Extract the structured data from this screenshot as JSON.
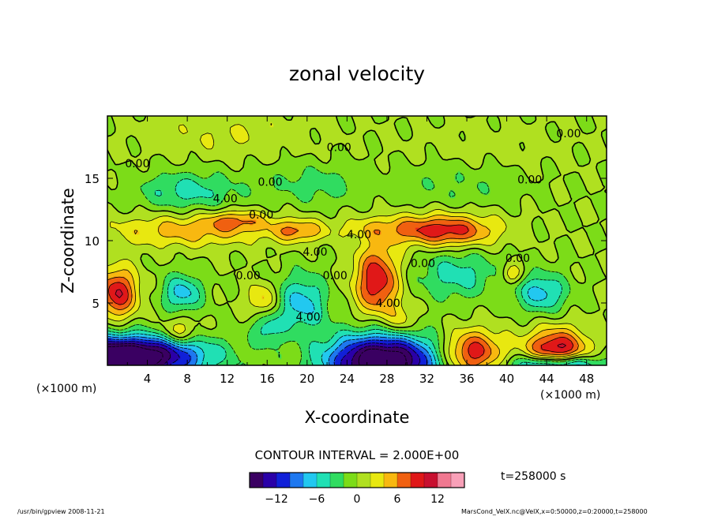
{
  "chart_data": {
    "type": "heatmap",
    "title": "zonal velocity",
    "xlabel": "X-coordinate",
    "ylabel": "Z-coordinate",
    "x_unit": "(×1000 m)",
    "y_unit": "(×1000 m)",
    "xlim": [
      0,
      50
    ],
    "ylim": [
      0,
      20
    ],
    "x_ticks": [
      "4",
      "8",
      "12",
      "16",
      "20",
      "24",
      "28",
      "32",
      "36",
      "40",
      "44",
      "48"
    ],
    "x_tick_values": [
      4,
      8,
      12,
      16,
      20,
      24,
      28,
      32,
      36,
      40,
      44,
      48
    ],
    "y_ticks": [
      "5",
      "10",
      "15"
    ],
    "y_tick_values": [
      5,
      10,
      15
    ],
    "contour_interval_text": "CONTOUR INTERVAL = 2.000E+00",
    "contour_labels": [
      {
        "text": "0.00",
        "x": 23.2,
        "z": 17.5
      },
      {
        "text": "0.00",
        "x": 46.2,
        "z": 18.6
      },
      {
        "text": "0.00",
        "x": 3.0,
        "z": 16.2
      },
      {
        "text": "0.00",
        "x": 16.3,
        "z": 14.7
      },
      {
        "text": "0.00",
        "x": 42.3,
        "z": 14.9
      },
      {
        "text": "4.00",
        "x": 11.8,
        "z": 13.4
      },
      {
        "text": "0.00",
        "x": 15.4,
        "z": 12.1
      },
      {
        "text": "4.00",
        "x": 25.2,
        "z": 10.5
      },
      {
        "text": "4.00",
        "x": 20.8,
        "z": 9.1
      },
      {
        "text": "0.00",
        "x": 14.1,
        "z": 7.2
      },
      {
        "text": "0.00",
        "x": 22.8,
        "z": 7.2
      },
      {
        "text": "0.00",
        "x": 31.6,
        "z": 8.2
      },
      {
        "text": "0.00",
        "x": 41.1,
        "z": 8.6
      },
      {
        "text": "4.00",
        "x": 20.1,
        "z": 3.9
      },
      {
        "text": "4.00",
        "x": 28.1,
        "z": 5.0
      }
    ],
    "fields": [
      {
        "x": 0.5,
        "z": 0.2,
        "sx": 8.0,
        "sz": 2.0,
        "amp": -18
      },
      {
        "x": 27.5,
        "z": 0.3,
        "sx": 5.5,
        "sz": 2.2,
        "amp": -20
      },
      {
        "x": 4.0,
        "z": 1.2,
        "sx": 6.5,
        "sz": 1.2,
        "amp": -6
      },
      {
        "x": 36.5,
        "z": 1.0,
        "sx": 3.0,
        "sz": 1.8,
        "amp": 10
      },
      {
        "x": 45.0,
        "z": 0.8,
        "sx": 3.0,
        "sz": 2.0,
        "amp": 13
      },
      {
        "x": 45.0,
        "z": 0.0,
        "sx": 4.0,
        "sz": 0.9,
        "amp": -16
      },
      {
        "x": 1.0,
        "z": 5.8,
        "sx": 2.0,
        "sz": 2.0,
        "amp": 10
      },
      {
        "x": 7.5,
        "z": 5.8,
        "sx": 2.0,
        "sz": 1.5,
        "amp": -7
      },
      {
        "x": 7.2,
        "z": 2.6,
        "sx": 1.8,
        "sz": 1.2,
        "amp": 5
      },
      {
        "x": 15.5,
        "z": 5.2,
        "sx": 1.5,
        "sz": 1.4,
        "amp": 5
      },
      {
        "x": 19.5,
        "z": 5.0,
        "sx": 2.5,
        "sz": 2.3,
        "amp": -7
      },
      {
        "x": 16.0,
        "z": 3.0,
        "sx": 1.6,
        "sz": 1.4,
        "amp": -5
      },
      {
        "x": 27.0,
        "z": 6.8,
        "sx": 2.2,
        "sz": 2.8,
        "amp": 10
      },
      {
        "x": 29.5,
        "z": 3.5,
        "sx": 1.5,
        "sz": 1.2,
        "amp": 4
      },
      {
        "x": 35.0,
        "z": 7.3,
        "sx": 4.0,
        "sz": 2.0,
        "amp": -5
      },
      {
        "x": 43.5,
        "z": 5.8,
        "sx": 2.5,
        "sz": 1.6,
        "amp": -7
      },
      {
        "x": 40.5,
        "z": 7.3,
        "sx": 1.0,
        "sz": 0.8,
        "amp": 5
      },
      {
        "x": 8.0,
        "z": 10.8,
        "sx": 8.0,
        "sz": 1.3,
        "amp": 5
      },
      {
        "x": 13.0,
        "z": 11.6,
        "sx": 3.0,
        "sz": 0.8,
        "amp": 5
      },
      {
        "x": 19.0,
        "z": 10.8,
        "sx": 2.5,
        "sz": 0.9,
        "amp": 6
      },
      {
        "x": 34.0,
        "z": 10.8,
        "sx": 5.0,
        "sz": 1.3,
        "amp": 9
      },
      {
        "x": 27.5,
        "z": 11.0,
        "sx": 5.0,
        "sz": 1.0,
        "amp": 3
      },
      {
        "x": 8.0,
        "z": 14.0,
        "sx": 5.0,
        "sz": 1.5,
        "amp": -5
      },
      {
        "x": 21.0,
        "z": 14.5,
        "sx": 5.0,
        "sz": 1.6,
        "amp": -3
      },
      {
        "x": 35.0,
        "z": 14.5,
        "sx": 6.0,
        "sz": 1.8,
        "amp": -2
      },
      {
        "x": 12.0,
        "z": 18.5,
        "sx": 8.0,
        "sz": 1.8,
        "amp": 2
      },
      {
        "x": 38.0,
        "z": 17.5,
        "sx": 8.0,
        "sz": 2.0,
        "amp": 1
      }
    ]
  },
  "colorbar": {
    "tick_labels": [
      "−12",
      "−6",
      "0",
      "6",
      "12"
    ],
    "tick_values": [
      -12,
      -6,
      0,
      6,
      12
    ],
    "range": [
      -16,
      16
    ],
    "stops": [
      "#3a0062",
      "#2a00a8",
      "#1020d8",
      "#1e78f0",
      "#22c8f0",
      "#20e0b4",
      "#30dc60",
      "#7cdc18",
      "#b0e020",
      "#e8e810",
      "#f8b810",
      "#f06010",
      "#e01818",
      "#c81030",
      "#f07890",
      "#f8a0b8"
    ]
  },
  "time_label": "t=258000 s",
  "footer": {
    "left": "/usr/bin/gpview   2008-11-21",
    "right": "MarsCond_VelX.nc@VelX,x=0:50000,z=0:20000,t=258000"
  }
}
